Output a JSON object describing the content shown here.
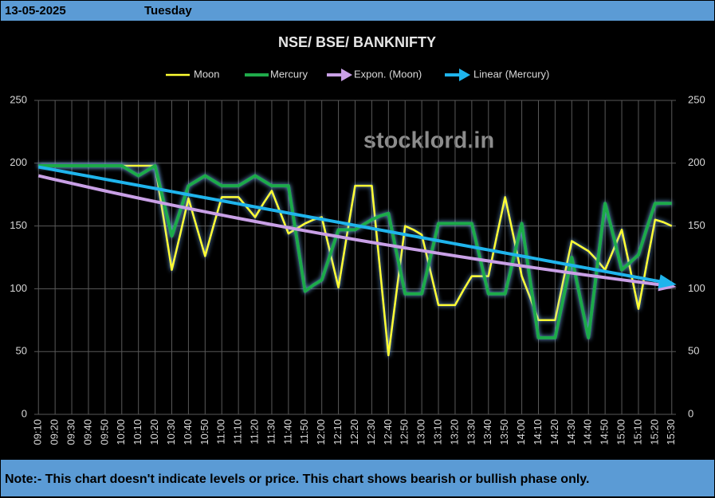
{
  "header": {
    "date": "13-05-2025",
    "day": "Tuesday"
  },
  "note": "Note:- This chart doesn't indicate levels or price. This chart shows bearish or bullish phase only.",
  "watermark": "stocklord.in",
  "chart_data": {
    "type": "line",
    "title": "NSE/ BSE/ BANKNIFTY",
    "categories": [
      "09:10",
      null,
      "09:20",
      null,
      "09:30",
      null,
      "09:40",
      null,
      "09:50",
      null,
      "10:00",
      null,
      "10:10",
      null,
      "10:20",
      null,
      "10:30",
      null,
      "10:40",
      null,
      "10:50",
      null,
      "11:00",
      null,
      "11:10",
      null,
      "11:20",
      null,
      "11:30",
      null,
      "11:40",
      null,
      "11:50",
      null,
      "12:00",
      null,
      "12:10",
      null,
      "12:20",
      null,
      "12:30",
      null,
      "12:40",
      null,
      "12:50",
      null,
      "13:00",
      null,
      "13:10",
      null,
      "13:20",
      null,
      "13:30",
      null,
      "13:40",
      null,
      "13:50",
      null,
      "14:00",
      null,
      "14:10",
      null,
      "14:20",
      null,
      "14:30",
      null,
      "14:40",
      null,
      "14:50",
      null,
      "15:00",
      null,
      "15:10",
      null,
      "15:20",
      null,
      "15:30"
    ],
    "series": [
      {
        "name": "Moon",
        "color": "#ffff33",
        "values": [
          198,
          198,
          198,
          198,
          198,
          198,
          198,
          198,
          198,
          198,
          198,
          198,
          198,
          198,
          198,
          157,
          115,
          143,
          172,
          149,
          126,
          150,
          173,
          173,
          173,
          165,
          157,
          168,
          178,
          161,
          144,
          148,
          152,
          155,
          157,
          129,
          101,
          142,
          182,
          182,
          182,
          115,
          47,
          99,
          150,
          147,
          143,
          115,
          87,
          87,
          87,
          99,
          110,
          110,
          110,
          142,
          173,
          142,
          110,
          93,
          75,
          75,
          75,
          107,
          138,
          134,
          130,
          123,
          115,
          131,
          147,
          116,
          84,
          120,
          155,
          153,
          150
        ]
      },
      {
        "name": "Mercury",
        "color": "#1faa4a",
        "values": [
          198,
          198,
          198,
          198,
          198,
          198,
          198,
          198,
          198,
          198,
          198,
          194,
          190,
          194,
          198,
          170,
          142,
          162,
          182,
          186,
          190,
          186,
          182,
          182,
          182,
          186,
          190,
          186,
          182,
          182,
          182,
          140,
          98,
          103,
          107,
          127,
          147,
          147,
          147,
          151,
          155,
          158,
          160,
          128,
          96,
          96,
          96,
          124,
          152,
          152,
          152,
          152,
          152,
          124,
          96,
          96,
          96,
          124,
          152,
          107,
          61,
          61,
          61,
          93,
          125,
          93,
          61,
          115,
          168,
          142,
          115,
          121,
          127,
          148,
          168,
          168,
          168
        ]
      }
    ],
    "trendlines": [
      {
        "name": "Expon. (Moon)",
        "color": "#c9a0e6",
        "kind": "exponential",
        "start": 190,
        "end": 102
      },
      {
        "name": "Linear (Mercury)",
        "color": "#1fb4ec",
        "kind": "linear",
        "start": 197,
        "end": 104
      }
    ],
    "ylim": [
      0,
      250
    ],
    "yticks": [
      0,
      50,
      100,
      150,
      200,
      250
    ],
    "y2lim": [
      0,
      250
    ],
    "y2ticks": [
      0,
      50,
      100,
      150,
      200,
      250
    ],
    "grid": true
  }
}
